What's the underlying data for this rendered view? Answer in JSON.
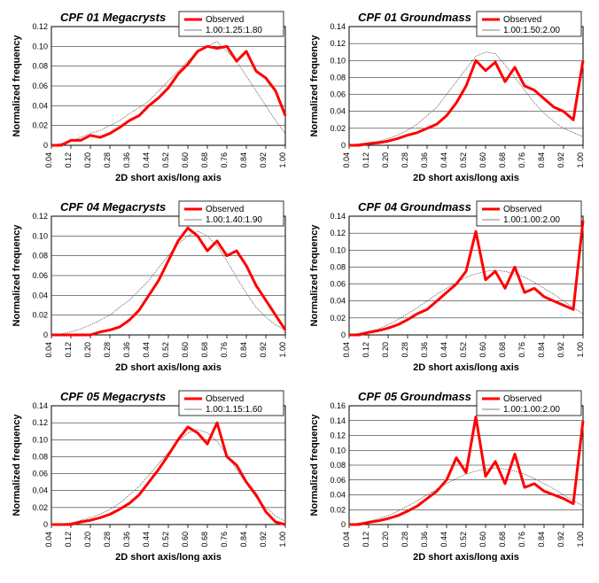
{
  "global": {
    "xlabel": "2D short axis/long axis",
    "ylabel": "Normalized frequency",
    "xticks": [
      "0.04",
      "0.12",
      "0.20",
      "0.28",
      "0.36",
      "0.44",
      "0.52",
      "0.60",
      "0.68",
      "0.76",
      "0.84",
      "0.92",
      "1.00"
    ],
    "observed_color": "#ff0000",
    "observed_width": 3,
    "model_color": "#555555",
    "model_width": 0.7,
    "grid_color": "#000000",
    "grid_width": 0.5,
    "border_color": "#000000",
    "background": "#ffffff",
    "title_fontsize": 13,
    "label_fontsize": 11,
    "tick_fontsize": 9,
    "legend_label": "Observed"
  },
  "panels": [
    {
      "title": "CPF 01 Megacrysts",
      "model_label": "1.00:1.25:1.80",
      "ymax": 0.12,
      "ystep": 0.02,
      "observed": [
        0,
        0,
        0.005,
        0.005,
        0.01,
        0.008,
        0.012,
        0.018,
        0.025,
        0.03,
        0.04,
        0.048,
        0.058,
        0.072,
        0.082,
        0.095,
        0.1,
        0.098,
        0.1,
        0.085,
        0.095,
        0.075,
        0.068,
        0.055,
        0.03
      ],
      "model": [
        0,
        0.002,
        0.004,
        0.008,
        0.012,
        0.015,
        0.02,
        0.025,
        0.032,
        0.038,
        0.045,
        0.055,
        0.065,
        0.075,
        0.085,
        0.095,
        0.1,
        0.105,
        0.095,
        0.085,
        0.07,
        0.055,
        0.04,
        0.025,
        0.012
      ]
    },
    {
      "title": "CPF 01 Groundmass",
      "model_label": "1.00:1.50:2.00",
      "ymax": 0.14,
      "ystep": 0.02,
      "observed": [
        0,
        0,
        0.002,
        0.003,
        0.005,
        0.008,
        0.012,
        0.015,
        0.02,
        0.025,
        0.035,
        0.05,
        0.07,
        0.1,
        0.088,
        0.098,
        0.075,
        0.092,
        0.07,
        0.065,
        0.055,
        0.045,
        0.04,
        0.03,
        0.1
      ],
      "model": [
        0,
        0.002,
        0.003,
        0.005,
        0.008,
        0.012,
        0.018,
        0.025,
        0.035,
        0.045,
        0.06,
        0.075,
        0.09,
        0.105,
        0.11,
        0.108,
        0.095,
        0.08,
        0.065,
        0.05,
        0.038,
        0.028,
        0.02,
        0.015,
        0.01
      ]
    },
    {
      "title": "CPF 04 Megacrysts",
      "model_label": "1.00:1.40:1.90",
      "ymax": 0.12,
      "ystep": 0.02,
      "observed": [
        0,
        0,
        0,
        0,
        0,
        0.003,
        0.005,
        0.008,
        0.015,
        0.025,
        0.04,
        0.055,
        0.075,
        0.095,
        0.108,
        0.1,
        0.085,
        0.095,
        0.08,
        0.085,
        0.07,
        0.05,
        0.035,
        0.02,
        0.005
      ],
      "model": [
        0,
        0.001,
        0.003,
        0.006,
        0.01,
        0.015,
        0.02,
        0.028,
        0.035,
        0.045,
        0.055,
        0.068,
        0.08,
        0.092,
        0.1,
        0.105,
        0.1,
        0.09,
        0.075,
        0.058,
        0.042,
        0.028,
        0.018,
        0.01,
        0.005
      ]
    },
    {
      "title": "CPF 04 Groundmass",
      "model_label": "1.00:1.00:2.00",
      "ymax": 0.14,
      "ystep": 0.02,
      "observed": [
        0,
        0,
        0.003,
        0.005,
        0.008,
        0.012,
        0.018,
        0.025,
        0.03,
        0.04,
        0.05,
        0.06,
        0.075,
        0.122,
        0.065,
        0.075,
        0.055,
        0.08,
        0.05,
        0.055,
        0.045,
        0.04,
        0.035,
        0.03,
        0.135
      ],
      "model": [
        0,
        0.002,
        0.004,
        0.007,
        0.012,
        0.018,
        0.025,
        0.032,
        0.04,
        0.048,
        0.055,
        0.062,
        0.068,
        0.072,
        0.075,
        0.076,
        0.075,
        0.072,
        0.068,
        0.062,
        0.055,
        0.048,
        0.04,
        0.032,
        0.025
      ]
    },
    {
      "title": "CPF 05 Megacrysts",
      "model_label": "1.00:1.15:1.60",
      "ymax": 0.14,
      "ystep": 0.02,
      "observed": [
        0,
        0,
        0,
        0.003,
        0.005,
        0.008,
        0.012,
        0.018,
        0.025,
        0.035,
        0.05,
        0.065,
        0.082,
        0.1,
        0.115,
        0.108,
        0.095,
        0.12,
        0.08,
        0.07,
        0.05,
        0.035,
        0.015,
        0.003,
        0
      ],
      "model": [
        0,
        0.001,
        0.002,
        0.005,
        0.008,
        0.012,
        0.018,
        0.025,
        0.035,
        0.045,
        0.058,
        0.072,
        0.085,
        0.098,
        0.108,
        0.112,
        0.108,
        0.098,
        0.082,
        0.065,
        0.048,
        0.032,
        0.02,
        0.01,
        0.004
      ]
    },
    {
      "title": "CPF 05 Groundmass",
      "model_label": "1.00:1.00:2.00",
      "ymax": 0.16,
      "ystep": 0.02,
      "observed": [
        0,
        0,
        0.003,
        0.005,
        0.008,
        0.012,
        0.018,
        0.025,
        0.035,
        0.045,
        0.06,
        0.09,
        0.07,
        0.145,
        0.065,
        0.085,
        0.055,
        0.095,
        0.05,
        0.055,
        0.045,
        0.04,
        0.035,
        0.028,
        0.14
      ],
      "model": [
        0,
        0.002,
        0.004,
        0.008,
        0.012,
        0.018,
        0.025,
        0.032,
        0.04,
        0.048,
        0.055,
        0.062,
        0.068,
        0.072,
        0.075,
        0.076,
        0.075,
        0.072,
        0.068,
        0.062,
        0.055,
        0.048,
        0.04,
        0.032,
        0.025
      ]
    }
  ]
}
